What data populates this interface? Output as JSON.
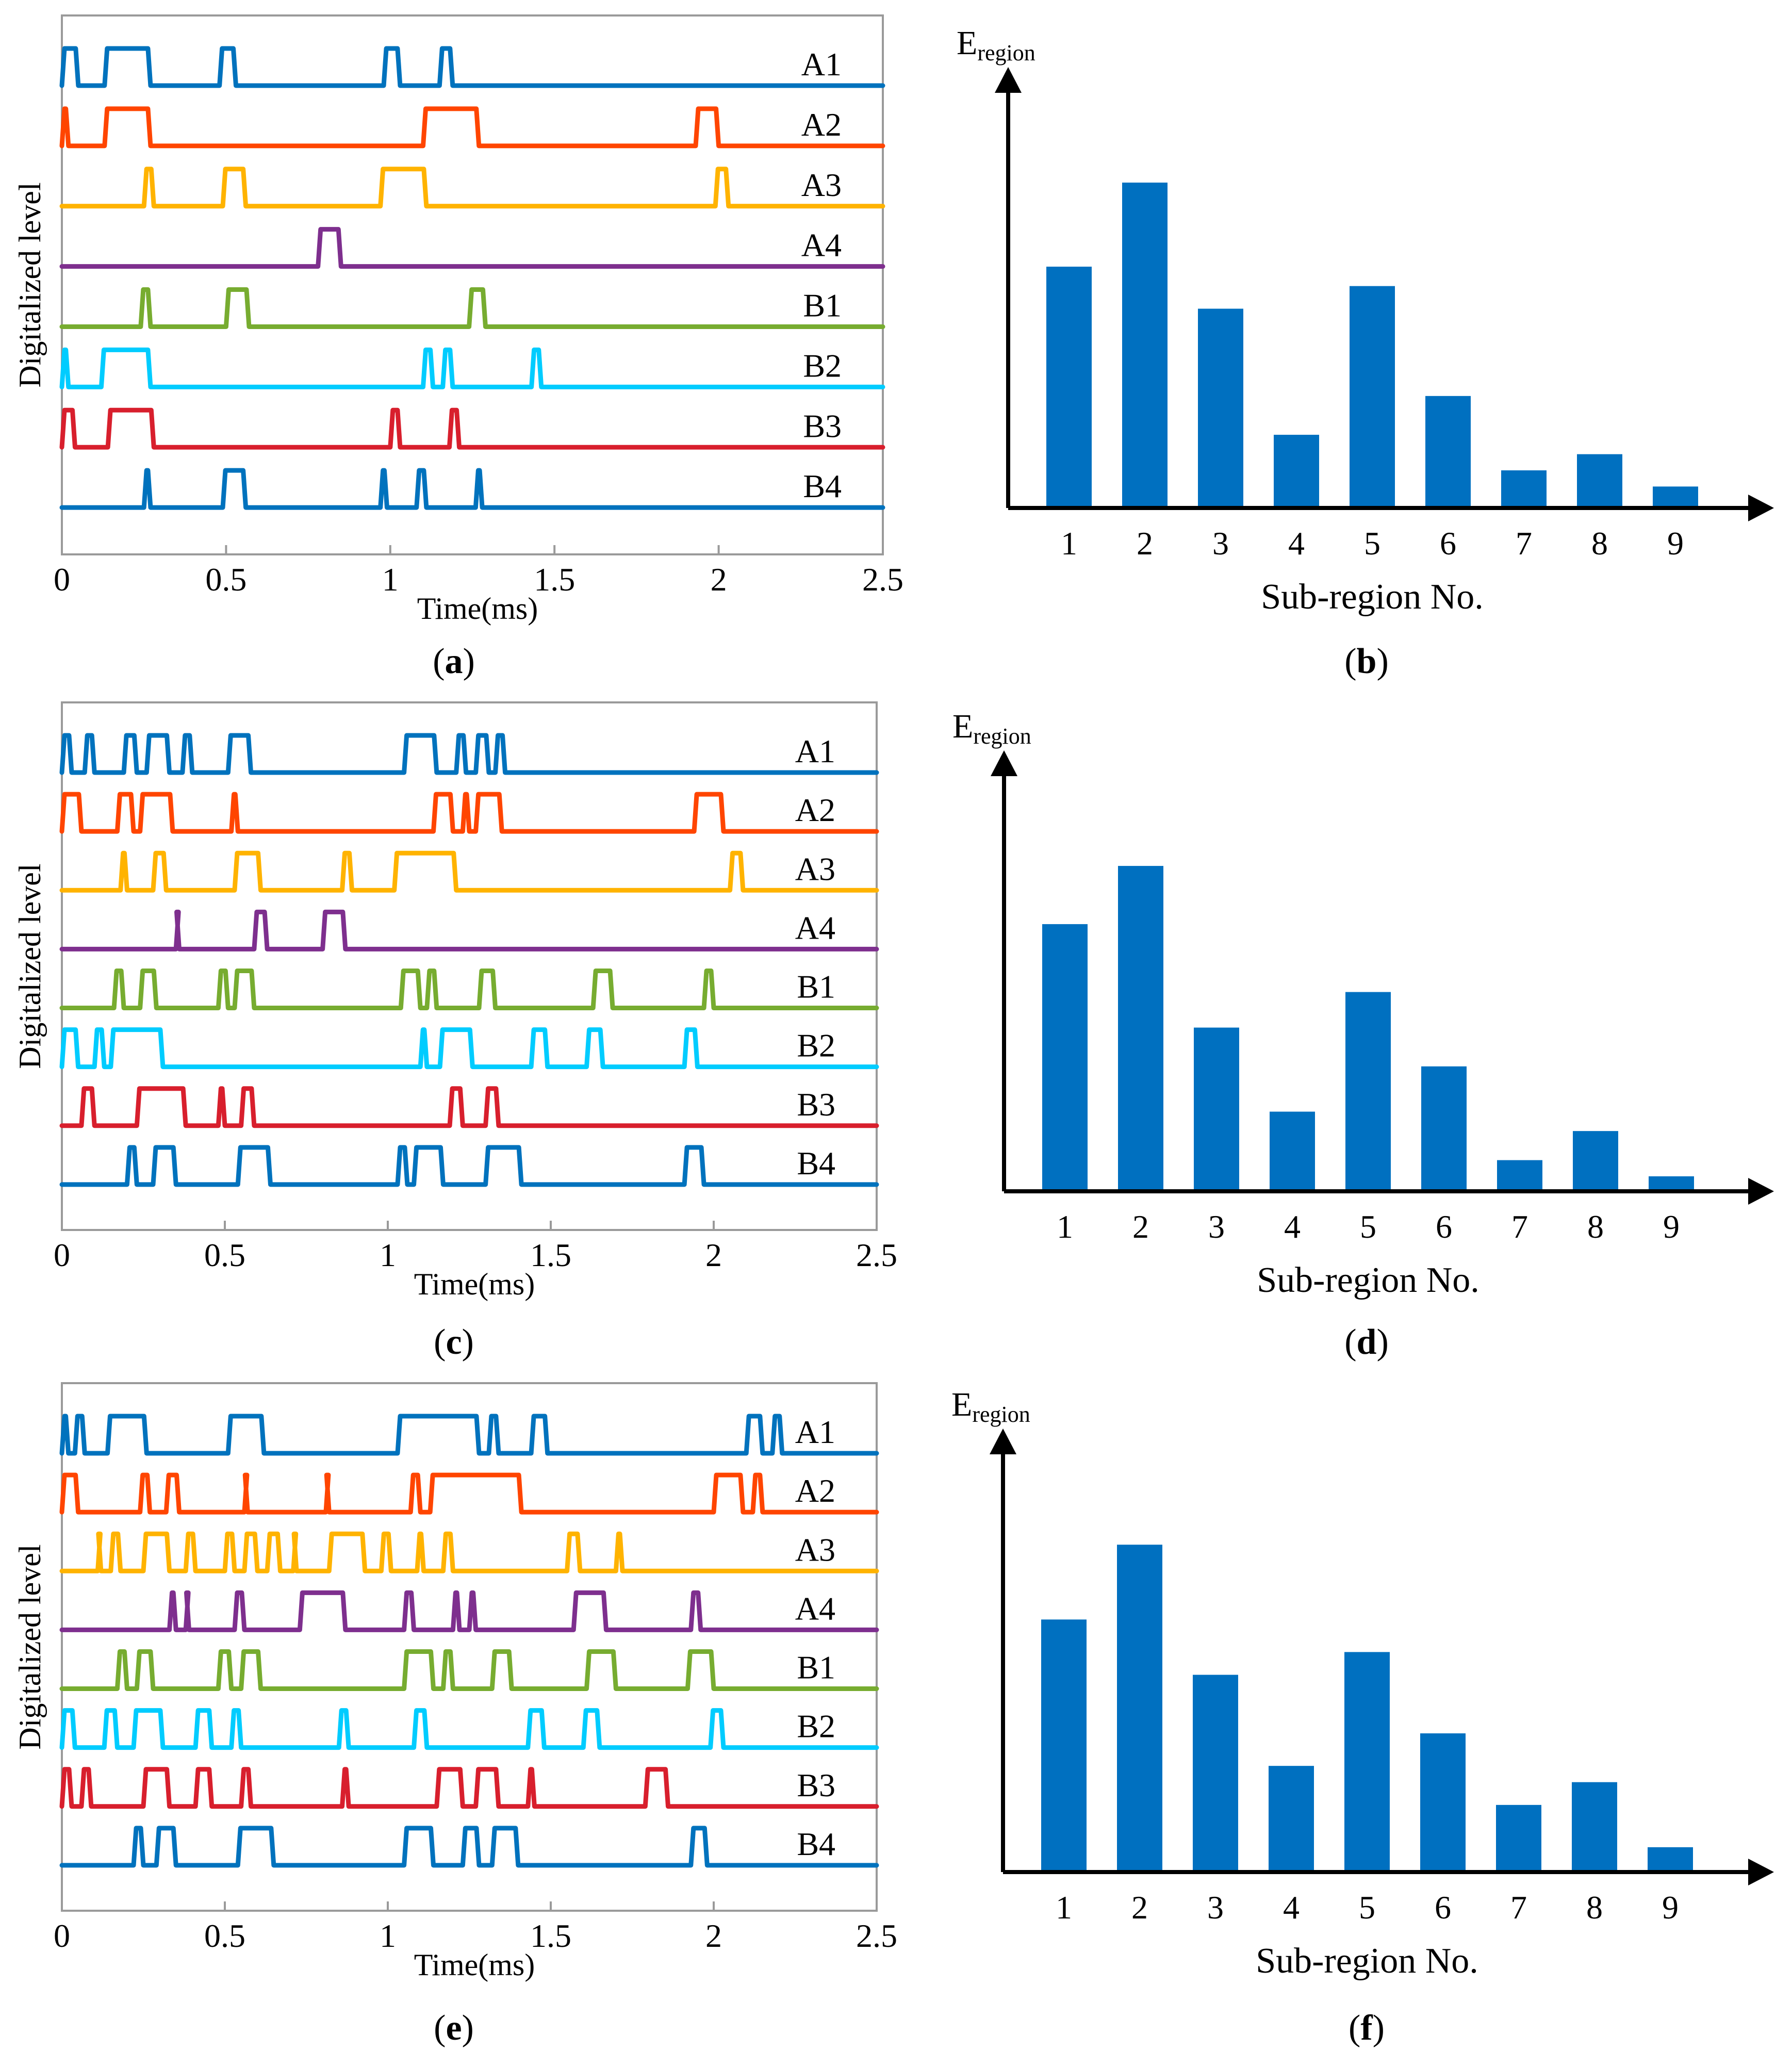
{
  "figure": {
    "colors": {
      "A1": "#0072BD",
      "A2": "#FF4500",
      "A3": "#FFB300",
      "A4": "#7E2F8E",
      "B1": "#77AC30",
      "B2": "#00CCFF",
      "B3": "#D81F2D",
      "B4": "#0072BD",
      "bar": "#0070C0",
      "frame": "#9a9a9a",
      "axis": "#000000"
    },
    "panels": [
      {
        "open": "(",
        "letter": "a",
        "close": ")"
      },
      {
        "open": "(",
        "letter": "b",
        "close": ")"
      },
      {
        "open": "(",
        "letter": "c",
        "close": ")"
      },
      {
        "open": "(",
        "letter": "d",
        "close": ")"
      },
      {
        "open": "(",
        "letter": "e",
        "close": ")"
      },
      {
        "open": "(",
        "letter": "f",
        "close": ")"
      }
    ],
    "bar_axis": {
      "y_main": "E",
      "y_sub": "region"
    }
  },
  "chart_data": [
    {
      "type": "line",
      "panel": "a",
      "title": "",
      "xlabel": "Time(ms)",
      "ylabel": "Digitalized  level",
      "xlim": [
        0,
        2.5
      ],
      "xticks": [
        "0",
        "0.5",
        "1",
        "1.5",
        "2",
        "2.5"
      ],
      "series": [
        {
          "name": "A1",
          "pulses": [
            [
              0.0,
              0.05
            ],
            [
              0.13,
              0.27
            ],
            [
              0.48,
              0.53
            ],
            [
              0.98,
              1.03
            ],
            [
              1.15,
              1.19
            ]
          ]
        },
        {
          "name": "A2",
          "pulses": [
            [
              0.0,
              0.02
            ],
            [
              0.13,
              0.27
            ],
            [
              1.1,
              1.27
            ],
            [
              1.93,
              2.0
            ]
          ]
        },
        {
          "name": "A3",
          "pulses": [
            [
              0.25,
              0.28
            ],
            [
              0.49,
              0.56
            ],
            [
              0.97,
              1.11
            ],
            [
              1.99,
              2.03
            ]
          ]
        },
        {
          "name": "A4",
          "pulses": [
            [
              0.78,
              0.85
            ]
          ]
        },
        {
          "name": "B1",
          "pulses": [
            [
              0.24,
              0.27
            ],
            [
              0.5,
              0.57
            ],
            [
              1.24,
              1.29
            ]
          ]
        },
        {
          "name": "B2",
          "pulses": [
            [
              0.0,
              0.02
            ],
            [
              0.12,
              0.27
            ],
            [
              1.1,
              1.13
            ],
            [
              1.16,
              1.19
            ],
            [
              1.43,
              1.46
            ]
          ]
        },
        {
          "name": "B3",
          "pulses": [
            [
              0.0,
              0.04
            ],
            [
              0.14,
              0.28
            ],
            [
              1.0,
              1.03
            ],
            [
              1.18,
              1.21
            ]
          ]
        },
        {
          "name": "B4",
          "pulses": [
            [
              0.25,
              0.27
            ],
            [
              0.49,
              0.56
            ],
            [
              0.97,
              0.99
            ],
            [
              1.08,
              1.11
            ],
            [
              1.26,
              1.28
            ]
          ]
        }
      ]
    },
    {
      "type": "bar",
      "panel": "b",
      "title": "",
      "xlabel": "Sub-region No.",
      "ylabel": "E_region",
      "categories": [
        "1",
        "2",
        "3",
        "4",
        "5",
        "6",
        "7",
        "8",
        "9"
      ],
      "values": [
        0.74,
        1.0,
        0.61,
        0.22,
        0.68,
        0.34,
        0.11,
        0.16,
        0.06
      ],
      "ylim": [
        0,
        1.3
      ]
    },
    {
      "type": "line",
      "panel": "c",
      "title": "",
      "xlabel": "Time(ms)",
      "ylabel": "Digitalized  level",
      "xlim": [
        0,
        2.5
      ],
      "xticks": [
        "0",
        "0.5",
        "1",
        "1.5",
        "2",
        "2.5"
      ],
      "series": [
        {
          "name": "A1",
          "pulses": [
            [
              0.0,
              0.03
            ],
            [
              0.07,
              0.1
            ],
            [
              0.19,
              0.23
            ],
            [
              0.26,
              0.33
            ],
            [
              0.37,
              0.4
            ],
            [
              0.51,
              0.58
            ],
            [
              1.05,
              1.15
            ],
            [
              1.21,
              1.24
            ],
            [
              1.27,
              1.31
            ],
            [
              1.33,
              1.36
            ]
          ]
        },
        {
          "name": "A2",
          "pulses": [
            [
              0.0,
              0.06
            ],
            [
              0.17,
              0.22
            ],
            [
              0.24,
              0.34
            ],
            [
              0.52,
              0.54
            ],
            [
              1.14,
              1.2
            ],
            [
              1.23,
              1.25
            ],
            [
              1.27,
              1.35
            ],
            [
              1.94,
              2.03
            ]
          ]
        },
        {
          "name": "A3",
          "pulses": [
            [
              0.18,
              0.2
            ],
            [
              0.28,
              0.32
            ],
            [
              0.53,
              0.61
            ],
            [
              0.86,
              0.89
            ],
            [
              1.02,
              1.21
            ],
            [
              2.05,
              2.09
            ]
          ]
        },
        {
          "name": "A4",
          "pulses": [
            [
              0.35,
              0.36
            ],
            [
              0.59,
              0.63
            ],
            [
              0.8,
              0.87
            ]
          ]
        },
        {
          "name": "B1",
          "pulses": [
            [
              0.16,
              0.19
            ],
            [
              0.24,
              0.29
            ],
            [
              0.48,
              0.51
            ],
            [
              0.53,
              0.59
            ],
            [
              1.04,
              1.1
            ],
            [
              1.12,
              1.15
            ],
            [
              1.28,
              1.33
            ],
            [
              1.63,
              1.69
            ],
            [
              1.97,
              2.0
            ]
          ]
        },
        {
          "name": "B2",
          "pulses": [
            [
              0.0,
              0.05
            ],
            [
              0.1,
              0.13
            ],
            [
              0.15,
              0.31
            ],
            [
              1.1,
              1.12
            ],
            [
              1.16,
              1.26
            ],
            [
              1.44,
              1.49
            ],
            [
              1.61,
              1.66
            ],
            [
              1.91,
              1.95
            ]
          ]
        },
        {
          "name": "B3",
          "pulses": [
            [
              0.06,
              0.1
            ],
            [
              0.23,
              0.38
            ],
            [
              0.48,
              0.5
            ],
            [
              0.55,
              0.59
            ],
            [
              1.19,
              1.23
            ],
            [
              1.3,
              1.34
            ]
          ]
        },
        {
          "name": "B4",
          "pulses": [
            [
              0.2,
              0.23
            ],
            [
              0.28,
              0.35
            ],
            [
              0.54,
              0.64
            ],
            [
              1.03,
              1.06
            ],
            [
              1.08,
              1.17
            ],
            [
              1.3,
              1.41
            ],
            [
              1.91,
              1.97
            ]
          ]
        }
      ]
    },
    {
      "type": "bar",
      "panel": "d",
      "title": "",
      "xlabel": "Sub-region No.",
      "ylabel": "E_region",
      "categories": [
        "1",
        "2",
        "3",
        "4",
        "5",
        "6",
        "7",
        "8",
        "9"
      ],
      "values": [
        0.82,
        1.0,
        0.5,
        0.24,
        0.61,
        0.38,
        0.09,
        0.18,
        0.04
      ],
      "ylim": [
        0,
        1.3
      ]
    },
    {
      "type": "line",
      "panel": "e",
      "title": "",
      "xlabel": "Time(ms)",
      "ylabel": "Digitalized  level",
      "xlim": [
        0,
        2.5
      ],
      "xticks": [
        "0",
        "0.5",
        "1",
        "1.5",
        "2",
        "2.5"
      ],
      "series": [
        {
          "name": "A1",
          "pulses": [
            [
              0.0,
              0.02
            ],
            [
              0.04,
              0.07
            ],
            [
              0.14,
              0.26
            ],
            [
              0.51,
              0.62
            ],
            [
              1.03,
              1.28
            ],
            [
              1.31,
              1.34
            ],
            [
              1.44,
              1.49
            ],
            [
              2.1,
              2.15
            ],
            [
              2.18,
              2.21
            ]
          ]
        },
        {
          "name": "A2",
          "pulses": [
            [
              0.0,
              0.05
            ],
            [
              0.24,
              0.27
            ],
            [
              0.32,
              0.36
            ],
            [
              0.56,
              0.57
            ],
            [
              0.81,
              0.82
            ],
            [
              1.07,
              1.1
            ],
            [
              1.13,
              1.41
            ],
            [
              2.0,
              2.09
            ],
            [
              2.12,
              2.15
            ]
          ]
        },
        {
          "name": "A3",
          "pulses": [
            [
              0.11,
              0.12
            ],
            [
              0.15,
              0.18
            ],
            [
              0.25,
              0.33
            ],
            [
              0.38,
              0.41
            ],
            [
              0.5,
              0.53
            ],
            [
              0.56,
              0.6
            ],
            [
              0.63,
              0.67
            ],
            [
              0.71,
              0.72
            ],
            [
              0.82,
              0.93
            ],
            [
              0.98,
              1.01
            ],
            [
              1.09,
              1.11
            ],
            [
              1.17,
              1.2
            ],
            [
              1.55,
              1.59
            ],
            [
              1.7,
              1.72
            ]
          ]
        },
        {
          "name": "A4",
          "pulses": [
            [
              0.33,
              0.35
            ],
            [
              0.38,
              0.39
            ],
            [
              0.53,
              0.56
            ],
            [
              0.73,
              0.87
            ],
            [
              1.05,
              1.08
            ],
            [
              1.2,
              1.22
            ],
            [
              1.25,
              1.27
            ],
            [
              1.57,
              1.67
            ],
            [
              1.93,
              1.96
            ]
          ]
        },
        {
          "name": "B1",
          "pulses": [
            [
              0.17,
              0.2
            ],
            [
              0.23,
              0.28
            ],
            [
              0.48,
              0.52
            ],
            [
              0.55,
              0.61
            ],
            [
              1.05,
              1.14
            ],
            [
              1.17,
              1.2
            ],
            [
              1.32,
              1.38
            ],
            [
              1.61,
              1.7
            ],
            [
              1.92,
              2.0
            ]
          ]
        },
        {
          "name": "B2",
          "pulses": [
            [
              0.0,
              0.04
            ],
            [
              0.13,
              0.17
            ],
            [
              0.22,
              0.31
            ],
            [
              0.41,
              0.46
            ],
            [
              0.52,
              0.55
            ],
            [
              0.85,
              0.88
            ],
            [
              1.08,
              1.12
            ],
            [
              1.43,
              1.48
            ],
            [
              1.6,
              1.65
            ],
            [
              1.99,
              2.03
            ]
          ]
        },
        {
          "name": "B3",
          "pulses": [
            [
              0.0,
              0.03
            ],
            [
              0.06,
              0.09
            ],
            [
              0.25,
              0.33
            ],
            [
              0.41,
              0.46
            ],
            [
              0.55,
              0.58
            ],
            [
              0.86,
              0.88
            ],
            [
              1.15,
              1.23
            ],
            [
              1.27,
              1.34
            ],
            [
              1.43,
              1.45
            ],
            [
              1.79,
              1.86
            ]
          ]
        },
        {
          "name": "B4",
          "pulses": [
            [
              0.22,
              0.25
            ],
            [
              0.29,
              0.35
            ],
            [
              0.54,
              0.65
            ],
            [
              1.05,
              1.14
            ],
            [
              1.23,
              1.28
            ],
            [
              1.32,
              1.4
            ],
            [
              1.93,
              1.98
            ]
          ]
        }
      ]
    },
    {
      "type": "bar",
      "panel": "f",
      "title": "",
      "xlabel": "Sub-region No.",
      "ylabel": "E_region",
      "categories": [
        "1",
        "2",
        "3",
        "4",
        "5",
        "6",
        "7",
        "8",
        "9"
      ],
      "values": [
        0.77,
        1.0,
        0.6,
        0.32,
        0.67,
        0.42,
        0.2,
        0.27,
        0.07
      ],
      "ylim": [
        0,
        1.3
      ]
    }
  ]
}
